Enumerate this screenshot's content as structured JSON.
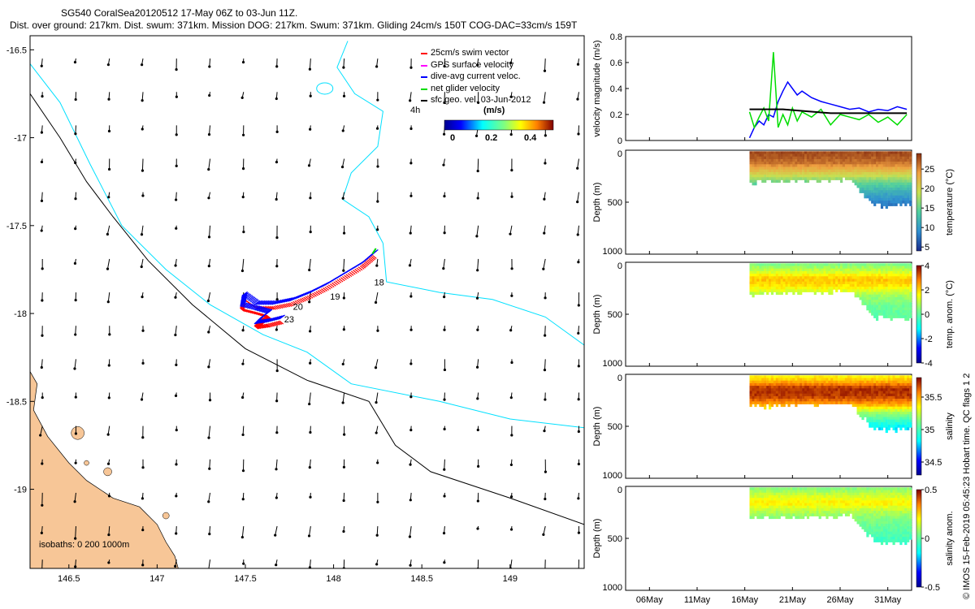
{
  "header": {
    "title_line1": "SG540 CoralSea20120512 17-May 06Z to 03-Jun 11Z.",
    "title_line2": "Dist. over ground: 217km. Dist. swum: 371km. Mission DOG: 217km. Swum: 371km. Gliding 24cm/s 150T COG-DAC=33cm/s 159T"
  },
  "footer": {
    "credit": "© IMOS 15-Feb-2019 05:45:23 Hobart time. QC flags 1  2"
  },
  "colors": {
    "land": "#f7c697",
    "coast_contour": "#000000",
    "isobath_200": "#00e0ff",
    "swim_vector": "#ff0000",
    "gps_velocity": "#ff00ff",
    "dive_avg": "#0000ff",
    "net_glider": "#00dd00",
    "geo_vel": "#000000"
  },
  "chart_data": [
    {
      "id": "map",
      "type": "scatter",
      "title": "",
      "xlabel": "",
      "ylabel": "",
      "xlim": [
        146.28,
        149.42
      ],
      "ylim": [
        -19.45,
        -16.42
      ],
      "x_ticks": [
        146.5,
        147,
        147.5,
        148,
        148.5,
        149
      ],
      "x_tick_labels": [
        "146.5",
        "147",
        "147.5",
        "148",
        "148.5",
        "149"
      ],
      "y_ticks": [
        -16.5,
        -17,
        -17.5,
        -18,
        -18.5,
        -19
      ],
      "y_tick_labels": [
        "-16.5",
        "-17",
        "-17.5",
        "-18",
        "-18.5",
        "-19"
      ],
      "legend": {
        "placement": "top-right",
        "entries": [
          {
            "label": "25cm/s swim vector",
            "color": "#ff0000"
          },
          {
            "label": "GPS surface velocity",
            "color": "#ff00ff"
          },
          {
            "label": "dive-avg current veloc.",
            "color": "#0000ff"
          },
          {
            "label": "net glider velocity",
            "color": "#00dd00"
          },
          {
            "label": "sfc geo. vel. 03-Jun-2012",
            "color": "#000000"
          }
        ]
      },
      "colorbar": {
        "units": "(m/s)",
        "tick_labels": [
          "0",
          "0.2",
          "0.4"
        ],
        "range": [
          0,
          0.5
        ]
      },
      "annotations": {
        "time_label": "4h",
        "isobaths": "isobaths: 0    200  1000m"
      },
      "day_labels": [
        {
          "text": "18",
          "x": 148.23,
          "y": -17.84
        },
        {
          "text": "19",
          "x": 147.98,
          "y": -17.92
        },
        {
          "text": "20",
          "x": 147.77,
          "y": -17.98
        },
        {
          "text": "23",
          "x": 147.72,
          "y": -18.05
        }
      ],
      "track": [
        [
          148.22,
          -17.66
        ],
        [
          148.15,
          -17.72
        ],
        [
          148.05,
          -17.78
        ],
        [
          147.95,
          -17.84
        ],
        [
          147.85,
          -17.89
        ],
        [
          147.75,
          -17.93
        ],
        [
          147.65,
          -17.95
        ],
        [
          147.55,
          -17.95
        ],
        [
          147.48,
          -17.9
        ],
        [
          147.47,
          -17.96
        ],
        [
          147.55,
          -17.98
        ],
        [
          147.62,
          -18.0
        ],
        [
          147.58,
          -18.03
        ],
        [
          147.55,
          -18.06
        ],
        [
          147.62,
          -18.05
        ],
        [
          147.7,
          -18.03
        ]
      ],
      "contour_1000m": [
        [
          146.28,
          -16.75
        ],
        [
          146.45,
          -17.0
        ],
        [
          146.6,
          -17.25
        ],
        [
          146.75,
          -17.45
        ],
        [
          146.95,
          -17.7
        ],
        [
          147.2,
          -17.95
        ],
        [
          147.5,
          -18.2
        ],
        [
          147.85,
          -18.38
        ],
        [
          148.2,
          -18.5
        ],
        [
          148.35,
          -18.75
        ],
        [
          148.55,
          -18.9
        ],
        [
          149.0,
          -19.05
        ],
        [
          149.42,
          -19.2
        ]
      ],
      "contour_200m": [
        [
          146.28,
          -16.58
        ],
        [
          146.45,
          -16.8
        ],
        [
          146.62,
          -17.15
        ],
        [
          146.8,
          -17.5
        ],
        [
          147.05,
          -17.75
        ],
        [
          147.3,
          -17.95
        ],
        [
          147.6,
          -18.12
        ],
        [
          147.85,
          -18.22
        ],
        [
          148.1,
          -18.4
        ],
        [
          148.6,
          -18.5
        ],
        [
          149.0,
          -18.6
        ],
        [
          149.42,
          -18.65
        ]
      ],
      "contour_200m_shelf": [
        [
          148.28,
          -17.6
        ],
        [
          148.3,
          -17.82
        ],
        [
          148.6,
          -17.88
        ],
        [
          148.9,
          -17.92
        ],
        [
          149.2,
          -18.02
        ],
        [
          149.42,
          -18.18
        ]
      ],
      "contour_200m_north": [
        [
          148.08,
          -16.45
        ],
        [
          148.02,
          -16.6
        ],
        [
          148.12,
          -16.75
        ],
        [
          148.28,
          -16.85
        ],
        [
          148.25,
          -17.05
        ],
        [
          148.1,
          -17.2
        ],
        [
          148.05,
          -17.35
        ],
        [
          148.2,
          -17.45
        ],
        [
          148.28,
          -17.6
        ]
      ]
    },
    {
      "id": "velocity",
      "type": "line",
      "title": "",
      "xlabel": "",
      "ylabel": "velocity magnitude (m/s)",
      "xlim": [
        0,
        33.5
      ],
      "ylim": [
        0,
        0.8
      ],
      "y_ticks": [
        0,
        0.2,
        0.4,
        0.6,
        0.8
      ],
      "y_tick_labels": [
        "0",
        "0.2",
        "0.4",
        "0.6",
        "0.8"
      ],
      "series": [
        {
          "name": "dive-avg current veloc.",
          "color": "#0000ff",
          "x": [
            16.5,
            17,
            17.5,
            18,
            18.5,
            19,
            19.5,
            20,
            20.5,
            21,
            21.5,
            22,
            23,
            24,
            25,
            26,
            27,
            28,
            29,
            30,
            31,
            32,
            33
          ],
          "y": [
            0.02,
            0.1,
            0.15,
            0.12,
            0.2,
            0.18,
            0.3,
            0.38,
            0.45,
            0.4,
            0.35,
            0.38,
            0.33,
            0.3,
            0.28,
            0.26,
            0.24,
            0.25,
            0.22,
            0.24,
            0.23,
            0.26,
            0.24
          ]
        },
        {
          "name": "net glider velocity",
          "color": "#00dd00",
          "x": [
            16.5,
            17,
            17.5,
            18,
            18.5,
            19,
            19.5,
            20,
            20.5,
            21,
            21.5,
            22,
            23,
            24,
            25,
            26,
            27,
            28,
            29,
            30,
            31,
            32,
            33
          ],
          "y": [
            0.22,
            0.1,
            0.18,
            0.25,
            0.15,
            0.68,
            0.1,
            0.2,
            0.12,
            0.25,
            0.15,
            0.22,
            0.18,
            0.24,
            0.12,
            0.2,
            0.18,
            0.16,
            0.2,
            0.14,
            0.18,
            0.12,
            0.2
          ]
        },
        {
          "name": "sfc geo. vel. 03-Jun-2012",
          "color": "#000000",
          "x": [
            16.5,
            20,
            25,
            30,
            33
          ],
          "y": [
            0.24,
            0.24,
            0.21,
            0.21,
            0.21
          ]
        }
      ]
    },
    {
      "id": "temperature",
      "type": "heatmap",
      "ylabel": "Depth (m)",
      "ylim": [
        1000,
        0
      ],
      "y_tick_labels": [
        "0",
        "500",
        "1000"
      ],
      "colorbar_label": "temperature (°C)",
      "colorbar_ticks": [
        "25",
        "20",
        "15",
        "10",
        "5"
      ],
      "colorbar_range": [
        4,
        29
      ],
      "x_start_day": 16.5,
      "x_end_day": 33.5,
      "max_depth": [
        [
          16.5,
          300
        ],
        [
          24,
          280
        ],
        [
          27,
          270
        ],
        [
          29.5,
          520
        ],
        [
          33.5,
          520
        ]
      ],
      "profile": [
        [
          0,
          28
        ],
        [
          60,
          27
        ],
        [
          110,
          26
        ],
        [
          150,
          24
        ],
        [
          200,
          21
        ],
        [
          250,
          18
        ],
        [
          300,
          15
        ],
        [
          400,
          11
        ],
        [
          500,
          8
        ]
      ]
    },
    {
      "id": "temp_anom",
      "type": "heatmap",
      "ylabel": "Depth (m)",
      "ylim": [
        1000,
        0
      ],
      "y_tick_labels": [
        "0",
        "500",
        "1000"
      ],
      "colorbar_label": "temp. anom. (°C)",
      "colorbar_ticks": [
        "4",
        "2",
        "0",
        "-2",
        "-4"
      ],
      "colorbar_range": [
        -4,
        4
      ],
      "x_start_day": 16.5,
      "x_end_day": 33.5,
      "max_depth": [
        [
          16.5,
          300
        ],
        [
          24,
          280
        ],
        [
          27,
          270
        ],
        [
          29.5,
          520
        ],
        [
          33.5,
          520
        ]
      ],
      "profile": [
        [
          0,
          0.3
        ],
        [
          80,
          1.2
        ],
        [
          150,
          2.2
        ],
        [
          220,
          1.8
        ],
        [
          300,
          0.8
        ],
        [
          400,
          0.2
        ],
        [
          500,
          0
        ]
      ]
    },
    {
      "id": "salinity",
      "type": "heatmap",
      "ylabel": "Depth (m)",
      "ylim": [
        1000,
        0
      ],
      "y_tick_labels": [
        "0",
        "500",
        "1000"
      ],
      "colorbar_label": "salinity",
      "colorbar_ticks": [
        "35.5",
        "35",
        "34.5"
      ],
      "colorbar_range": [
        34.3,
        35.8
      ],
      "x_start_day": 16.5,
      "x_end_day": 33.5,
      "max_depth": [
        [
          16.5,
          300
        ],
        [
          24,
          280
        ],
        [
          27,
          270
        ],
        [
          29.5,
          520
        ],
        [
          33.5,
          520
        ]
      ],
      "profile": [
        [
          0,
          35.35
        ],
        [
          60,
          35.5
        ],
        [
          120,
          35.72
        ],
        [
          200,
          35.7
        ],
        [
          280,
          35.5
        ],
        [
          350,
          35.2
        ],
        [
          420,
          35.0
        ],
        [
          500,
          34.8
        ]
      ]
    },
    {
      "id": "sal_anom",
      "type": "heatmap",
      "ylabel": "Depth (m)",
      "ylim": [
        1000,
        0
      ],
      "y_tick_labels": [
        "0",
        "500",
        "1000"
      ],
      "colorbar_label": "salinity anom.",
      "colorbar_ticks": [
        "0.5",
        "0",
        "-0.5"
      ],
      "colorbar_range": [
        -0.5,
        0.5
      ],
      "x_start_day": 16.5,
      "x_end_day": 33.5,
      "x_ticks_day": [
        6,
        11,
        16,
        21,
        26,
        31
      ],
      "x_tick_labels": [
        "06May",
        "11May",
        "16May",
        "21May",
        "26May",
        "31May"
      ],
      "max_depth": [
        [
          16.5,
          300
        ],
        [
          24,
          280
        ],
        [
          27,
          270
        ],
        [
          29.5,
          520
        ],
        [
          33.5,
          520
        ]
      ],
      "profile": [
        [
          0,
          0.05
        ],
        [
          80,
          0.15
        ],
        [
          150,
          0.22
        ],
        [
          220,
          0.12
        ],
        [
          300,
          0.05
        ],
        [
          400,
          0.0
        ],
        [
          500,
          -0.05
        ]
      ]
    }
  ]
}
